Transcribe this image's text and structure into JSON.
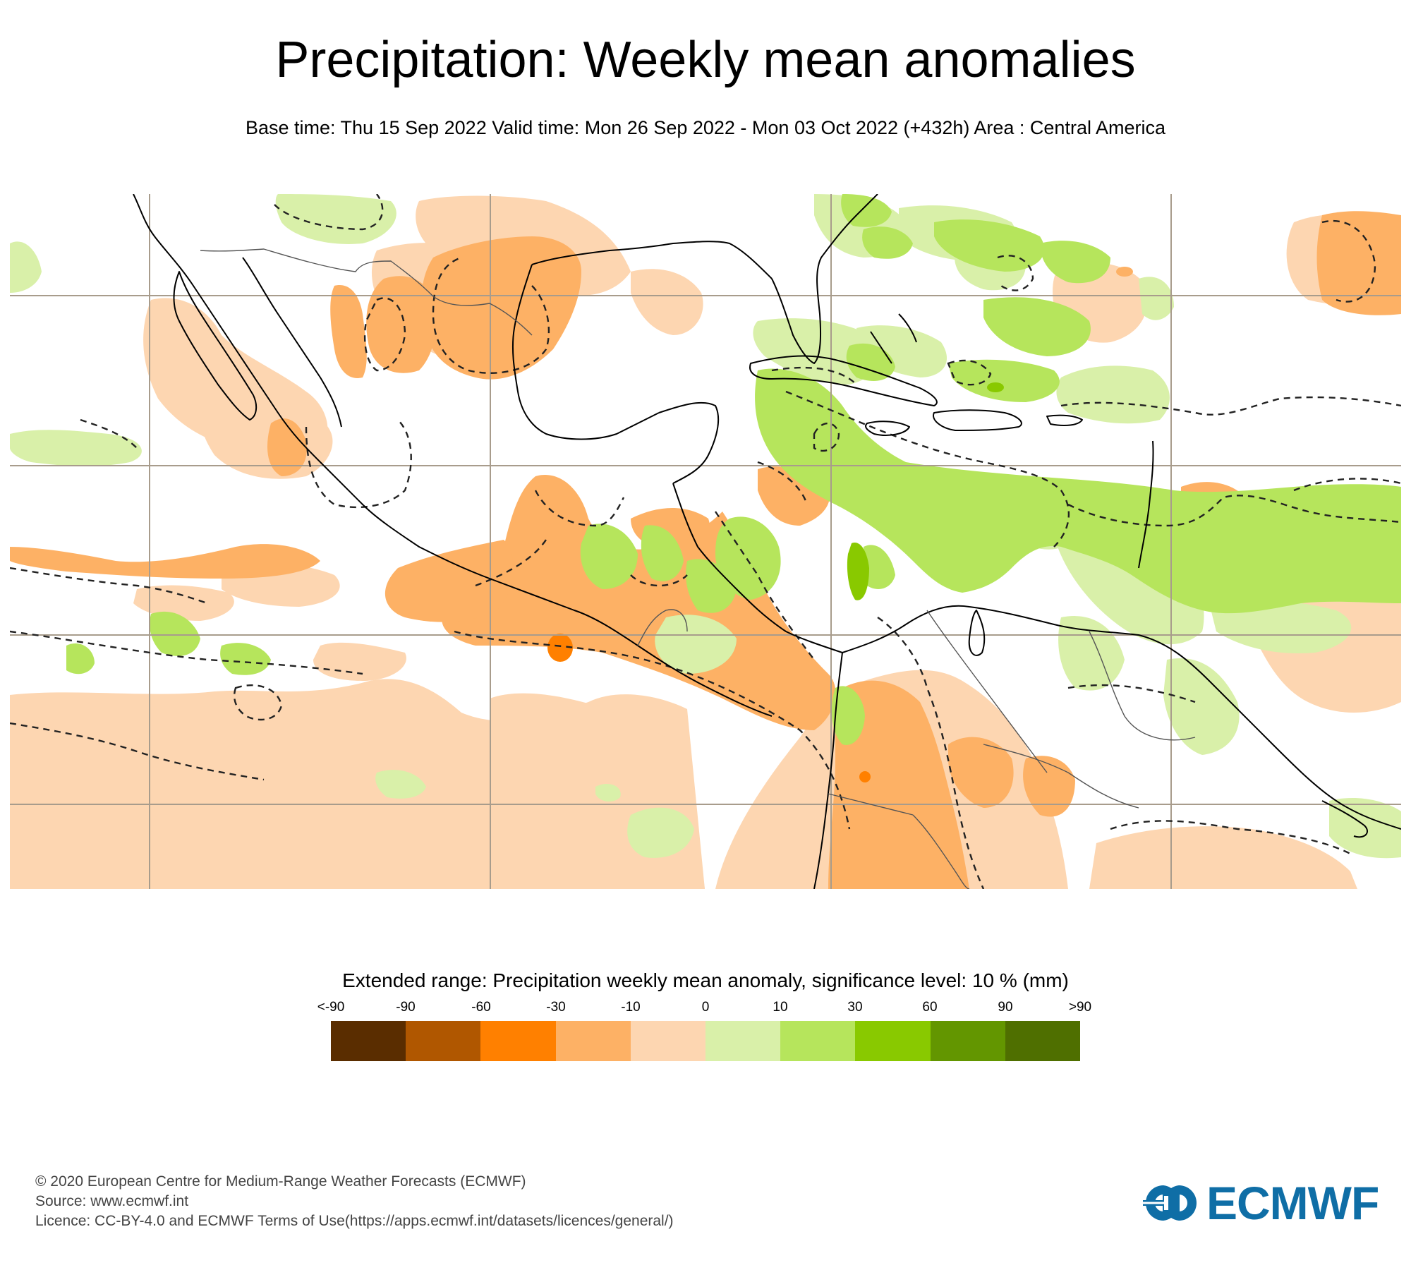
{
  "header": {
    "title": "Precipitation: Weekly mean anomalies",
    "subtitle": "Base time: Thu 15 Sep 2022 Valid time: Mon 26 Sep 2022 - Mon 03 Oct 2022 (+432h) Area : Central America"
  },
  "map": {
    "area": "Central America",
    "layers": [
      "precipitation-anomaly-shading",
      "significance-contour-dashed",
      "coastlines",
      "country-borders",
      "graticule"
    ],
    "colors": {
      "coastline": "#000000",
      "border": "#555555",
      "graticule": "#a89c8c",
      "significance_contour": "#222222"
    }
  },
  "legend": {
    "title": "Extended range: Precipitation weekly mean anomaly, significance level: 10 % (mm)",
    "ticks": [
      "<-90",
      "-90",
      "-60",
      "-30",
      "-10",
      "0",
      "10",
      "30",
      "60",
      "90",
      ">90"
    ],
    "bins": [
      {
        "range": "< -90",
        "color": "#5a2d00"
      },
      {
        "range": "-90 to -60",
        "color": "#b05700"
      },
      {
        "range": "-60 to -30",
        "color": "#ff8000"
      },
      {
        "range": "-30 to -10",
        "color": "#fdb165"
      },
      {
        "range": "-10 to 0",
        "color": "#fdd6b1"
      },
      {
        "range": "0 to 10",
        "color": "#d9f0a9"
      },
      {
        "range": "10 to 30",
        "color": "#b6e55c"
      },
      {
        "range": "30 to 60",
        "color": "#89c900"
      },
      {
        "range": "60 to 90",
        "color": "#639600"
      },
      {
        "range": "> 90",
        "color": "#4f6f00"
      }
    ]
  },
  "footer": {
    "copyright": "© 2020 European Centre for Medium-Range Weather Forecasts (ECMWF)",
    "source": "Source: www.ecmwf.int",
    "licence": "Licence: CC-BY-4.0 and ECMWF Terms of Use(https://apps.ecmwf.int/datasets/licences/general/)"
  },
  "logo": {
    "text": "ECMWF",
    "color": "#0f6ea6"
  }
}
